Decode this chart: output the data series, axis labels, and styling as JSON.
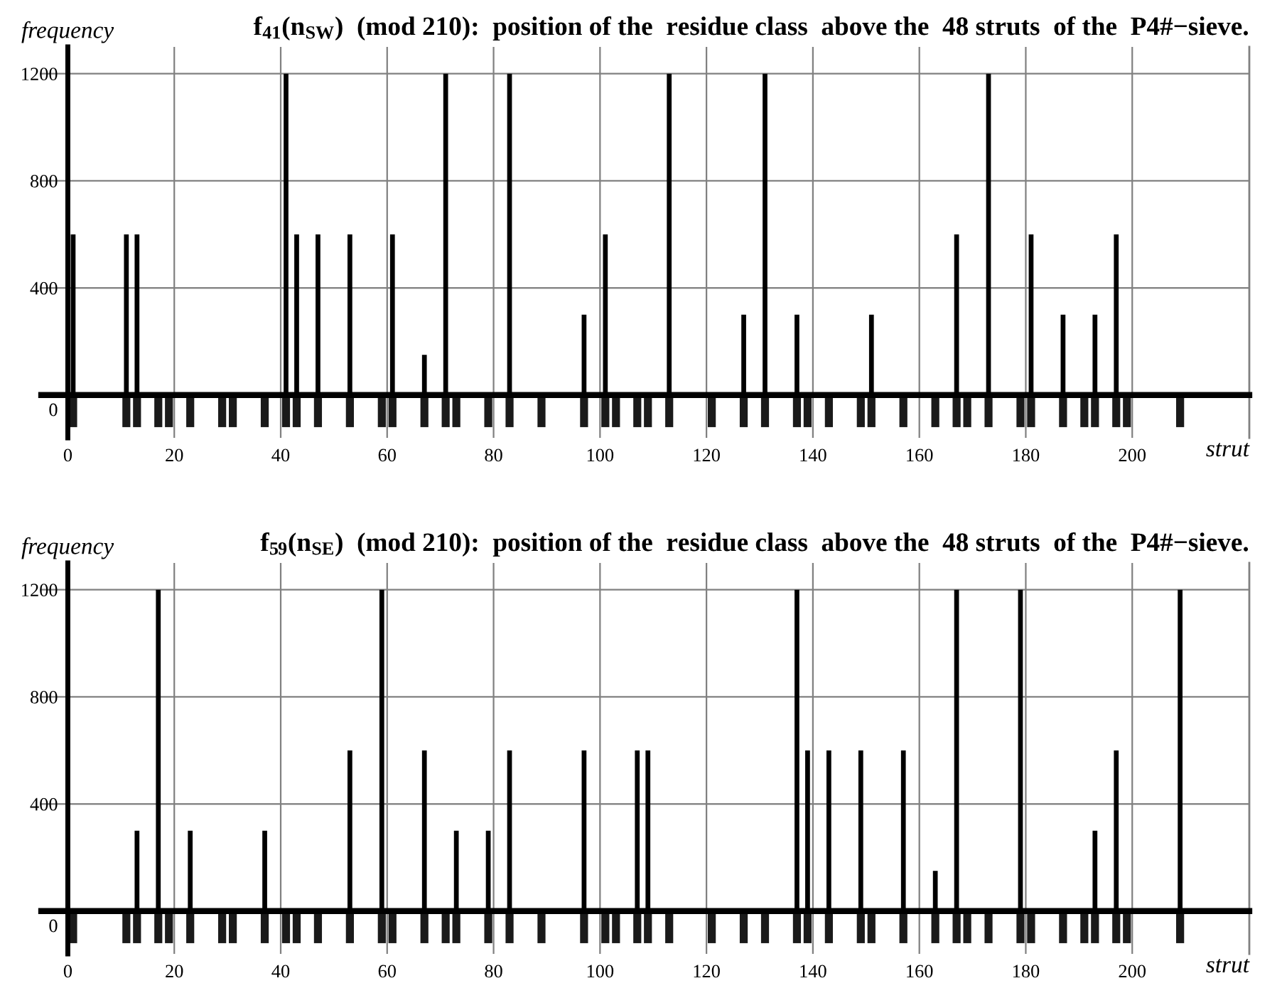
{
  "chart_data": [
    {
      "type": "bar",
      "title": "f$_{41}$(n$_{SW}$)  (mod 210):  position of the  residue class  above the  48 struts  of the  P4#−sieve.",
      "ylabel": "frequency",
      "xlabel": "strut",
      "xlim": [
        -5,
        222
      ],
      "ylim": [
        -160,
        1300
      ],
      "xticks": [
        0,
        20,
        40,
        60,
        80,
        100,
        120,
        140,
        160,
        180,
        200
      ],
      "yticks": [
        0,
        400,
        800,
        1200
      ],
      "grid": true,
      "series": [
        {
          "color": "#000000",
          "x": [
            1,
            11,
            13,
            41,
            43,
            47,
            53,
            61,
            67,
            71,
            83,
            97,
            101,
            113,
            127,
            131,
            137,
            151,
            167,
            173,
            181,
            187,
            193,
            197
          ],
          "values": [
            600,
            600,
            600,
            1200,
            600,
            600,
            600,
            600,
            150,
            1200,
            1200,
            300,
            600,
            1200,
            300,
            1200,
            300,
            300,
            600,
            1200,
            600,
            300,
            300,
            600
          ]
        },
        {
          "color": "#1a1a1a",
          "x": [
            1,
            11,
            13,
            17,
            19,
            23,
            29,
            31,
            37,
            41,
            43,
            47,
            53,
            59,
            61,
            67,
            71,
            73,
            79,
            83,
            89,
            97,
            101,
            103,
            107,
            109,
            113,
            121,
            127,
            131,
            137,
            139,
            143,
            149,
            151,
            157,
            163,
            167,
            169,
            173,
            179,
            181,
            187,
            191,
            193,
            197,
            199,
            209
          ],
          "values": [
            -120,
            -120,
            -120,
            -120,
            -120,
            -120,
            -120,
            -120,
            -120,
            -120,
            -120,
            -120,
            -120,
            -120,
            -120,
            -120,
            -120,
            -120,
            -120,
            -120,
            -120,
            -120,
            -120,
            -120,
            -120,
            -120,
            -120,
            -120,
            -120,
            -120,
            -120,
            -120,
            -120,
            -120,
            -120,
            -120,
            -120,
            -120,
            -120,
            -120,
            -120,
            -120,
            -120,
            -120,
            -120,
            -120,
            -120,
            -120
          ]
        }
      ]
    },
    {
      "type": "bar",
      "title": "f$_{59}$(n$_{SE}$)  (mod 210):  position of the  residue class  above the  48 struts  of the  P4#−sieve.",
      "ylabel": "frequency",
      "xlabel": "strut",
      "xlim": [
        -5,
        222
      ],
      "ylim": [
        -160,
        1300
      ],
      "xticks": [
        0,
        20,
        40,
        60,
        80,
        100,
        120,
        140,
        160,
        180,
        200
      ],
      "yticks": [
        0,
        400,
        800,
        1200
      ],
      "grid": true,
      "series": [
        {
          "color": "#000000",
          "x": [
            13,
            17,
            23,
            37,
            53,
            59,
            67,
            73,
            79,
            83,
            97,
            107,
            109,
            137,
            139,
            143,
            149,
            157,
            163,
            167,
            179,
            193,
            197,
            209
          ],
          "values": [
            300,
            1200,
            300,
            300,
            600,
            1200,
            600,
            300,
            300,
            600,
            600,
            600,
            600,
            1200,
            600,
            600,
            600,
            600,
            150,
            1200,
            1200,
            300,
            600,
            1200
          ]
        },
        {
          "color": "#1a1a1a",
          "x": [
            1,
            11,
            13,
            17,
            19,
            23,
            29,
            31,
            37,
            41,
            43,
            47,
            53,
            59,
            61,
            67,
            71,
            73,
            79,
            83,
            89,
            97,
            101,
            103,
            107,
            109,
            113,
            121,
            127,
            131,
            137,
            139,
            143,
            149,
            151,
            157,
            163,
            167,
            169,
            173,
            179,
            181,
            187,
            191,
            193,
            197,
            199,
            209
          ],
          "values": [
            -120,
            -120,
            -120,
            -120,
            -120,
            -120,
            -120,
            -120,
            -120,
            -120,
            -120,
            -120,
            -120,
            -120,
            -120,
            -120,
            -120,
            -120,
            -120,
            -120,
            -120,
            -120,
            -120,
            -120,
            -120,
            -120,
            -120,
            -120,
            -120,
            -120,
            -120,
            -120,
            -120,
            -120,
            -120,
            -120,
            -120,
            -120,
            -120,
            -120,
            -120,
            -120,
            -120,
            -120,
            -120,
            -120,
            -120,
            -120
          ]
        }
      ]
    }
  ]
}
